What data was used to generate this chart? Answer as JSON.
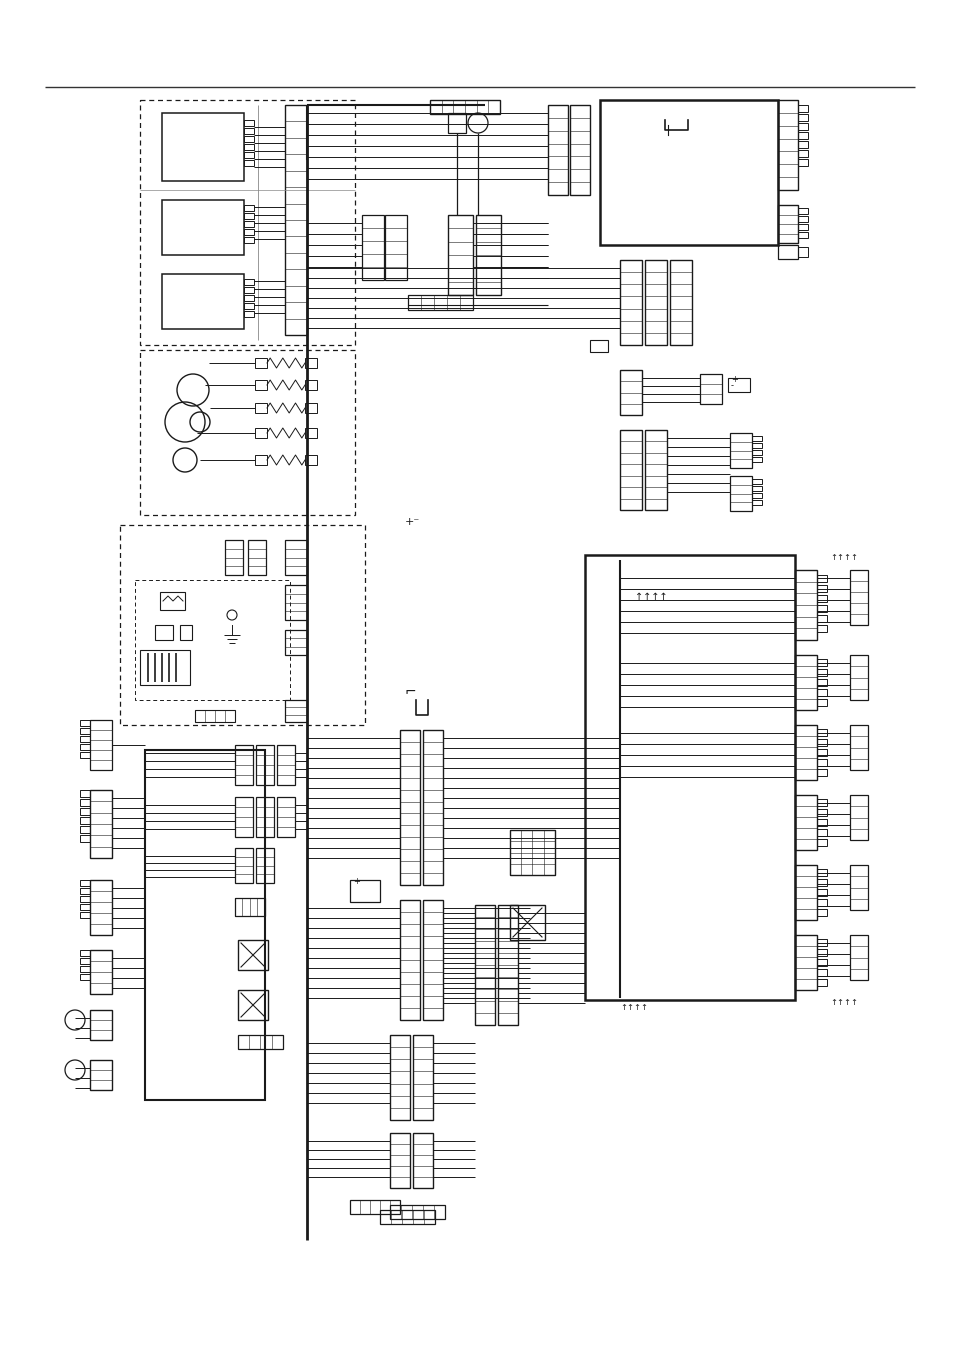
{
  "bg_color": "#ffffff",
  "line_color": "#1a1a1a",
  "fig_width": 9.54,
  "fig_height": 13.51,
  "dpi": 100
}
